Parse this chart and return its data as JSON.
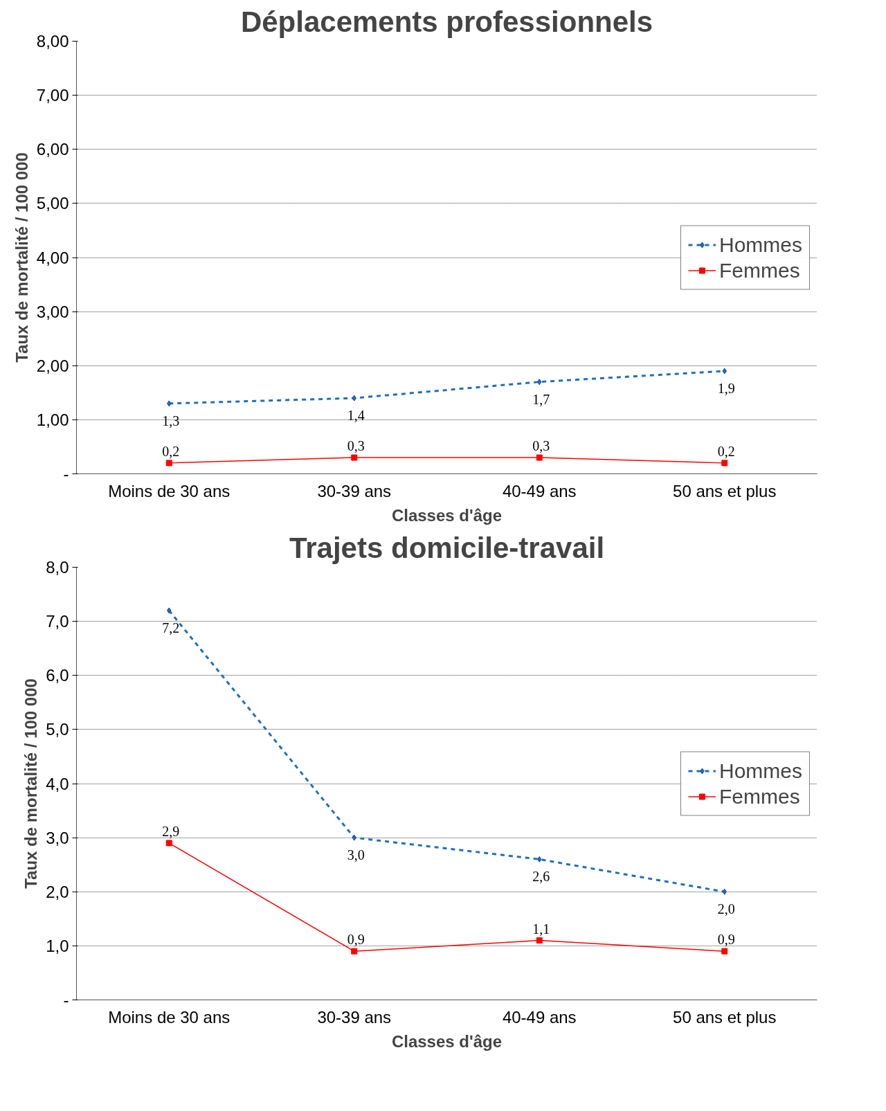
{
  "chart_data": [
    {
      "type": "line",
      "title": "Déplacements professionnels",
      "xlabel": "Classes d'âge",
      "ylabel": "Taux de mortalité / 100 000",
      "categories": [
        "Moins de 30 ans",
        "30-39 ans",
        "40-49 ans",
        "50 ans et plus"
      ],
      "series": [
        {
          "name": "Hommes",
          "color": "#1f6fbf",
          "values": [
            1.3,
            1.4,
            1.7,
            1.9
          ],
          "value_labels": [
            "1,3",
            "1,4",
            "1,7",
            "1,9"
          ],
          "marker": "diamond",
          "line_style": "dashed"
        },
        {
          "name": "Femmes",
          "color": "#ff0000",
          "values": [
            0.2,
            0.3,
            0.3,
            0.2
          ],
          "value_labels": [
            "0,2",
            "0,3",
            "0,3",
            "0,2"
          ],
          "marker": "square",
          "line_style": "solid"
        }
      ],
      "ylim": [
        0,
        8
      ],
      "yticks": [
        {
          "value": 0,
          "label": "-"
        },
        {
          "value": 1,
          "label": "1,00"
        },
        {
          "value": 2,
          "label": "2,00"
        },
        {
          "value": 3,
          "label": "3,00"
        },
        {
          "value": 4,
          "label": "4,00"
        },
        {
          "value": 5,
          "label": "5,00"
        },
        {
          "value": 6,
          "label": "6,00"
        },
        {
          "value": 7,
          "label": "7,00"
        },
        {
          "value": 8,
          "label": "8,00"
        }
      ],
      "grid": "y",
      "legend": "right"
    },
    {
      "type": "line",
      "title": "Trajets domicile-travail",
      "xlabel": "Classes d'âge",
      "ylabel": "Taux de mortalité / 100 000",
      "categories": [
        "Moins de 30 ans",
        "30-39 ans",
        "40-49 ans",
        "50 ans et plus"
      ],
      "series": [
        {
          "name": "Hommes",
          "color": "#1f6fbf",
          "values": [
            7.2,
            3.0,
            2.6,
            2.0
          ],
          "value_labels": [
            "7,2",
            "3,0",
            "2,6",
            "2,0"
          ],
          "marker": "diamond",
          "line_style": "dashed"
        },
        {
          "name": "Femmes",
          "color": "#ff0000",
          "values": [
            2.9,
            0.9,
            1.1,
            0.9
          ],
          "value_labels": [
            "2,9",
            "0,9",
            "1,1",
            "0,9"
          ],
          "marker": "square",
          "line_style": "solid"
        }
      ],
      "ylim": [
        0,
        8
      ],
      "yticks": [
        {
          "value": 0,
          "label": "-"
        },
        {
          "value": 1,
          "label": "1,0"
        },
        {
          "value": 2,
          "label": "2,0"
        },
        {
          "value": 3,
          "label": "3,0"
        },
        {
          "value": 4,
          "label": "4,0"
        },
        {
          "value": 5,
          "label": "5,0"
        },
        {
          "value": 6,
          "label": "6,0"
        },
        {
          "value": 7,
          "label": "7,0"
        },
        {
          "value": 8,
          "label": "8,0"
        }
      ],
      "grid": "y",
      "legend": "right"
    }
  ]
}
